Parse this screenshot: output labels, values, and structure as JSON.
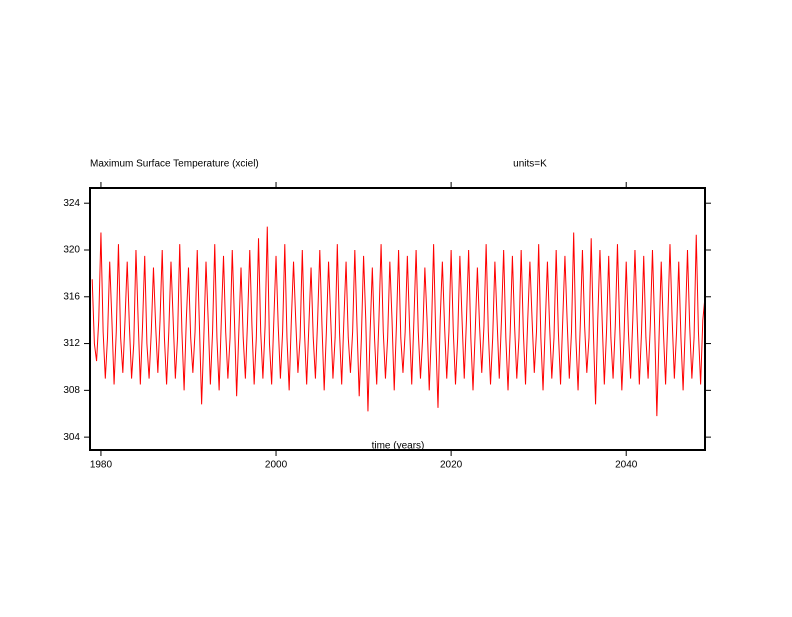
{
  "chart_data": {
    "type": "line",
    "title": "Maximum Surface Temperature (xciel)",
    "subtitle": "units=K",
    "x_label": "time (years)",
    "xlim": [
      1978.75,
      2049.0
    ],
    "xticks": [
      1980,
      2000,
      2020,
      2040
    ],
    "ylim": [
      302.9,
      325.3
    ],
    "yticks": [
      304,
      308,
      312,
      316,
      320,
      324
    ],
    "grid": false,
    "x": [
      1979,
      1979.25,
      1979.5,
      1979.75,
      1980,
      1980.25,
      1980.5,
      1980.75,
      1981,
      1981.25,
      1981.5,
      1981.75,
      1982,
      1982.25,
      1982.5,
      1982.75,
      1983,
      1983.25,
      1983.5,
      1983.75,
      1984,
      1984.25,
      1984.5,
      1984.75,
      1985,
      1985.25,
      1985.5,
      1985.75,
      1986,
      1986.25,
      1986.5,
      1986.75,
      1987,
      1987.25,
      1987.5,
      1987.75,
      1988,
      1988.25,
      1988.5,
      1988.75,
      1989,
      1989.25,
      1989.5,
      1989.75,
      1990,
      1990.25,
      1990.5,
      1990.75,
      1991,
      1991.25,
      1991.5,
      1991.75,
      1992,
      1992.25,
      1992.5,
      1992.75,
      1993,
      1993.25,
      1993.5,
      1993.75,
      1994,
      1994.25,
      1994.5,
      1994.75,
      1995,
      1995.25,
      1995.5,
      1995.75,
      1996,
      1996.25,
      1996.5,
      1996.75,
      1997,
      1997.25,
      1997.5,
      1997.75,
      1998,
      1998.25,
      1998.5,
      1998.75,
      1999,
      1999.25,
      1999.5,
      1999.75,
      2000,
      2000.25,
      2000.5,
      2000.75,
      2001,
      2001.25,
      2001.5,
      2001.75,
      2002,
      2002.25,
      2002.5,
      2002.75,
      2003,
      2003.25,
      2003.5,
      2003.75,
      2004,
      2004.25,
      2004.5,
      2004.75,
      2005,
      2005.25,
      2005.5,
      2005.75,
      2006,
      2006.25,
      2006.5,
      2006.75,
      2007,
      2007.25,
      2007.5,
      2007.75,
      2008,
      2008.25,
      2008.5,
      2008.75,
      2009,
      2009.25,
      2009.5,
      2009.75,
      2010,
      2010.25,
      2010.5,
      2010.75,
      2011,
      2011.25,
      2011.5,
      2011.75,
      2012,
      2012.25,
      2012.5,
      2012.75,
      2013,
      2013.25,
      2013.5,
      2013.75,
      2014,
      2014.25,
      2014.5,
      2014.75,
      2015,
      2015.25,
      2015.5,
      2015.75,
      2016,
      2016.25,
      2016.5,
      2016.75,
      2017,
      2017.25,
      2017.5,
      2017.75,
      2018,
      2018.25,
      2018.5,
      2018.75,
      2019,
      2019.25,
      2019.5,
      2019.75,
      2020,
      2020.25,
      2020.5,
      2020.75,
      2021,
      2021.25,
      2021.5,
      2021.75,
      2022,
      2022.25,
      2022.5,
      2022.75,
      2023,
      2023.25,
      2023.5,
      2023.75,
      2024,
      2024.25,
      2024.5,
      2024.75,
      2025,
      2025.25,
      2025.5,
      2025.75,
      2026,
      2026.25,
      2026.5,
      2026.75,
      2027,
      2027.25,
      2027.5,
      2027.75,
      2028,
      2028.25,
      2028.5,
      2028.75,
      2029,
      2029.25,
      2029.5,
      2029.75,
      2030,
      2030.25,
      2030.5,
      2030.75,
      2031,
      2031.25,
      2031.5,
      2031.75,
      2032,
      2032.25,
      2032.5,
      2032.75,
      2033,
      2033.25,
      2033.5,
      2033.75,
      2034,
      2034.25,
      2034.5,
      2034.75,
      2035,
      2035.25,
      2035.5,
      2035.75,
      2036,
      2036.25,
      2036.5,
      2036.75,
      2037,
      2037.25,
      2037.5,
      2037.75,
      2038,
      2038.25,
      2038.5,
      2038.75,
      2039,
      2039.25,
      2039.5,
      2039.75,
      2040,
      2040.25,
      2040.5,
      2040.75,
      2041,
      2041.25,
      2041.5,
      2041.75,
      2042,
      2042.25,
      2042.5,
      2042.75,
      2043,
      2043.25,
      2043.5,
      2043.75,
      2044,
      2044.25,
      2044.5,
      2044.75,
      2045,
      2045.25,
      2045.5,
      2045.75,
      2046,
      2046.25,
      2046.5,
      2046.75,
      2047,
      2047.25,
      2047.5,
      2047.75,
      2048,
      2048.25,
      2048.5,
      2048.75,
      2049
    ],
    "series": [
      {
        "color": "#ff0000",
        "values": [
          317.5,
          312,
          310.5,
          314,
          321.5,
          313,
          309,
          312.5,
          319,
          314,
          308.5,
          313,
          320.5,
          312.5,
          309.5,
          314,
          319,
          313.5,
          309,
          312,
          320,
          314,
          308.5,
          313.5,
          319.5,
          312,
          309,
          313,
          318.5,
          313.5,
          309.5,
          314,
          320,
          312.5,
          308.5,
          313,
          319,
          314,
          309,
          312.5,
          320.5,
          313,
          308,
          314,
          318.5,
          312.5,
          309.5,
          313,
          320,
          313.5,
          306.8,
          312.5,
          319,
          314,
          308.5,
          313,
          320.5,
          312.5,
          308,
          314,
          319.5,
          313,
          309,
          312.5,
          320,
          314,
          307.5,
          313,
          318.5,
          312.5,
          309,
          314,
          320,
          313.5,
          308.5,
          312.5,
          321,
          313,
          309,
          313.5,
          322,
          312,
          308.5,
          314,
          319.5,
          313.5,
          309,
          313,
          320.5,
          312.5,
          308,
          314,
          319,
          314,
          309.5,
          312.5,
          320,
          313,
          308.5,
          313.5,
          318.5,
          312.5,
          309,
          314,
          320,
          313.5,
          308,
          313,
          319,
          314,
          309,
          312.5,
          320.5,
          313,
          308.5,
          314,
          319,
          312.5,
          309.5,
          313,
          320,
          313.5,
          307.5,
          312.5,
          319.5,
          314,
          306.2,
          313,
          318.5,
          312.5,
          308.5,
          314,
          320.5,
          313,
          309,
          312.5,
          319,
          314,
          308,
          313.5,
          320,
          312.5,
          309.5,
          313,
          319.5,
          313.5,
          308.5,
          314,
          320,
          313,
          309,
          312.5,
          318.5,
          314,
          308,
          313,
          320.5,
          312.5,
          306.5,
          314,
          319,
          313.5,
          309,
          313,
          320,
          313,
          308.5,
          312.5,
          319.5,
          314,
          309,
          314,
          320,
          312.5,
          308,
          313,
          318.5,
          313.5,
          309.5,
          313.5,
          320.5,
          313,
          308.5,
          312.5,
          319,
          314,
          309,
          314,
          320,
          312.5,
          308,
          313,
          319.5,
          313.5,
          309,
          312.5,
          320,
          313,
          308.5,
          314,
          319,
          314,
          309.5,
          313,
          320.5,
          312.5,
          308,
          313.5,
          319,
          313.5,
          309,
          312.5,
          320,
          313,
          308.5,
          314,
          319.5,
          314,
          309,
          313,
          321.5,
          312.5,
          308,
          313.5,
          320,
          313.5,
          309.5,
          312.5,
          321,
          313,
          306.8,
          314,
          320,
          314,
          308.5,
          313,
          319.5,
          312.5,
          309,
          313.5,
          320.5,
          313.5,
          308,
          312.5,
          319,
          313,
          309,
          314,
          320,
          314,
          308.5,
          313,
          319.5,
          312.5,
          309,
          313.5,
          320,
          313.5,
          305.8,
          312.5,
          319,
          313,
          308.5,
          314,
          320.5,
          314,
          309,
          313,
          319,
          312.5,
          308,
          313.5,
          320,
          313.5,
          309,
          312.5,
          321.3,
          313,
          308.5,
          314,
          316
        ]
      }
    ]
  }
}
